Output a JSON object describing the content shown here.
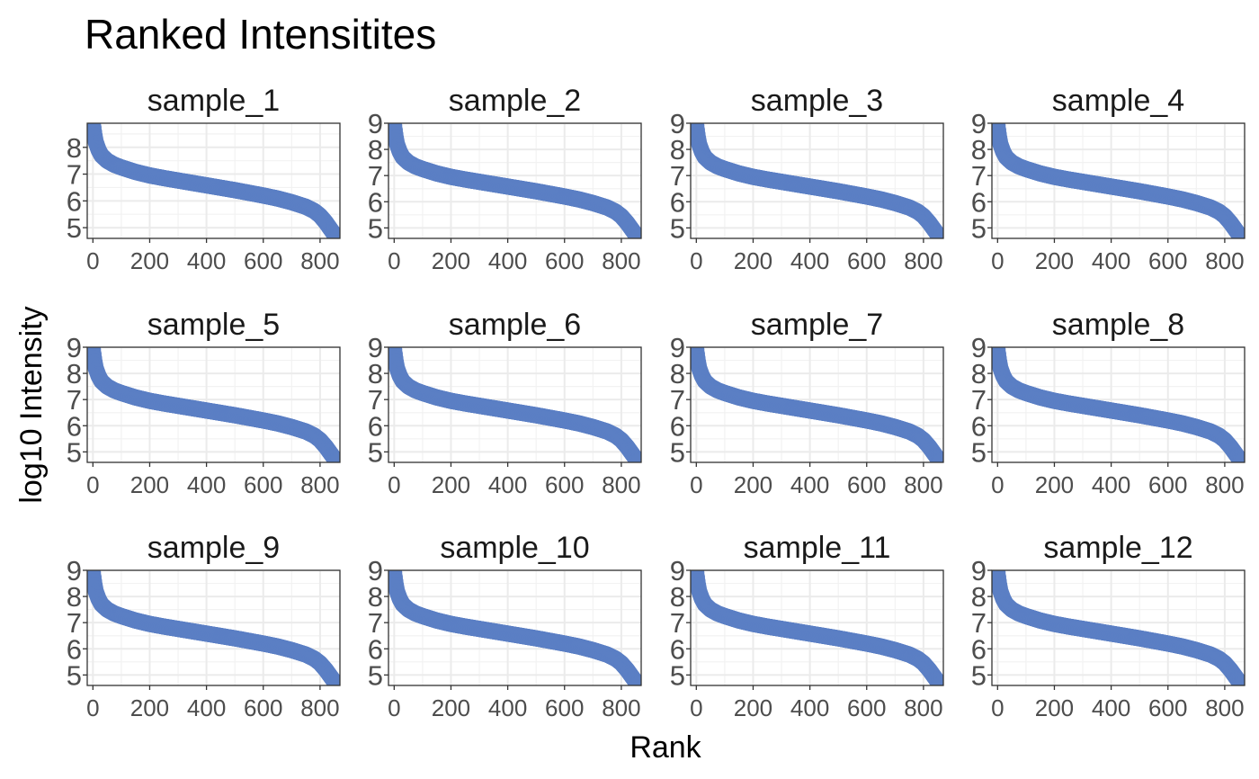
{
  "chart_data": {
    "type": "scatter",
    "title": "Ranked Intensitites",
    "xlabel": "Rank",
    "ylabel": "log10 Intensity",
    "xlim": [
      -20,
      870
    ],
    "x_ticks": [
      0,
      200,
      400,
      600,
      800
    ],
    "x_tick_labels": [
      "0",
      "200",
      "400",
      "600",
      "800"
    ],
    "y_ticks": [
      5,
      6,
      7,
      8,
      9
    ],
    "y_tick_labels": [
      "5",
      "6",
      "7",
      "8",
      "9"
    ],
    "grid": true,
    "point_color": "#5b7fc4",
    "curve_shape": {
      "x": [
        0,
        5,
        10,
        20,
        30,
        50,
        75,
        100,
        150,
        200,
        250,
        300,
        350,
        400,
        450,
        500,
        550,
        600,
        650,
        700,
        750,
        780,
        800,
        820,
        840,
        860
      ],
      "y": [
        8.9,
        8.5,
        8.2,
        7.9,
        7.7,
        7.5,
        7.35,
        7.25,
        7.08,
        6.95,
        6.85,
        6.76,
        6.67,
        6.58,
        6.49,
        6.4,
        6.3,
        6.2,
        6.09,
        5.95,
        5.78,
        5.62,
        5.45,
        5.2,
        4.9,
        4.6
      ]
    },
    "panels": [
      {
        "name": "sample_1",
        "ylim": [
          4.6,
          8.9
        ],
        "y_ticks": [
          "5",
          "6",
          "7",
          "8"
        ]
      },
      {
        "name": "sample_2",
        "ylim": [
          4.6,
          9.0
        ],
        "y_ticks": [
          "5",
          "6",
          "7",
          "8",
          "9"
        ]
      },
      {
        "name": "sample_3",
        "ylim": [
          4.6,
          9.0
        ],
        "y_ticks": [
          "5",
          "6",
          "7",
          "8",
          "9"
        ]
      },
      {
        "name": "sample_4",
        "ylim": [
          4.6,
          9.0
        ],
        "y_ticks": [
          "5",
          "6",
          "7",
          "8",
          "9"
        ]
      },
      {
        "name": "sample_5",
        "ylim": [
          4.6,
          9.0
        ],
        "y_ticks": [
          "5",
          "6",
          "7",
          "8",
          "9"
        ]
      },
      {
        "name": "sample_6",
        "ylim": [
          4.6,
          9.0
        ],
        "y_ticks": [
          "5",
          "6",
          "7",
          "8",
          "9"
        ]
      },
      {
        "name": "sample_7",
        "ylim": [
          4.6,
          9.0
        ],
        "y_ticks": [
          "5",
          "6",
          "7",
          "8",
          "9"
        ]
      },
      {
        "name": "sample_8",
        "ylim": [
          4.6,
          9.0
        ],
        "y_ticks": [
          "5",
          "6",
          "7",
          "8",
          "9"
        ]
      },
      {
        "name": "sample_9",
        "ylim": [
          4.6,
          9.0
        ],
        "y_ticks": [
          "5",
          "6",
          "7",
          "8",
          "9"
        ]
      },
      {
        "name": "sample_10",
        "ylim": [
          4.6,
          9.0
        ],
        "y_ticks": [
          "5",
          "6",
          "7",
          "8",
          "9"
        ]
      },
      {
        "name": "sample_11",
        "ylim": [
          4.6,
          9.0
        ],
        "y_ticks": [
          "5",
          "6",
          "7",
          "8",
          "9"
        ]
      },
      {
        "name": "sample_12",
        "ylim": [
          4.6,
          9.0
        ],
        "y_ticks": [
          "5",
          "6",
          "7",
          "8",
          "9"
        ]
      }
    ]
  }
}
